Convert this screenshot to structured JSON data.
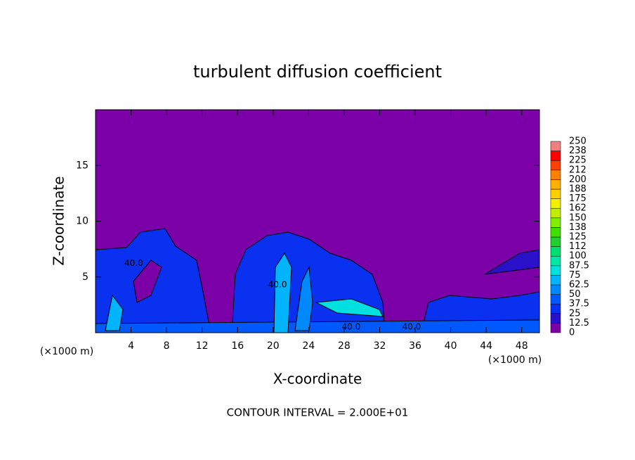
{
  "chart_data": {
    "type": "contour",
    "title": "turbulent diffusion coefficient",
    "x_label": "X-coordinate",
    "y_label": "Z-coordinate",
    "y_unit_label": "(×1000 m)",
    "x_unit_label": "(×1000 m)",
    "xlim": [
      0,
      50
    ],
    "xticks": [
      4,
      8,
      12,
      16,
      20,
      24,
      28,
      32,
      36,
      40,
      44,
      48
    ],
    "ylim": [
      0,
      20
    ],
    "yticks": [
      5,
      10,
      15
    ],
    "colorbar": {
      "levels": [
        0,
        12.5,
        25,
        37.5,
        50,
        62.5,
        75,
        87.5,
        100,
        112,
        125,
        138,
        150,
        162,
        175,
        188,
        200,
        212,
        225,
        238,
        250
      ],
      "colors": [
        "#7b00a8",
        "#2a10c8",
        "#0a30f0",
        "#0058ff",
        "#0088ff",
        "#00b4ff",
        "#00e0e0",
        "#00e8a8",
        "#00e070",
        "#20d030",
        "#40e000",
        "#80f000",
        "#c0f000",
        "#f0f000",
        "#ffd000",
        "#ffb000",
        "#ff8000",
        "#ff4000",
        "#ff0000",
        "#f08080"
      ]
    },
    "contour_labels": [
      {
        "label": "40.0",
        "x": 4.3,
        "z": 6.2
      },
      {
        "label": "40.0",
        "x": 20.5,
        "z": 4.3
      },
      {
        "label": "40.0",
        "x": 28.8,
        "z": 0.5
      },
      {
        "label": "40.0",
        "x": 35.6,
        "z": 0.5
      }
    ],
    "contour_interval_label": "CONTOUR INTERVAL = 2.000E+01"
  }
}
